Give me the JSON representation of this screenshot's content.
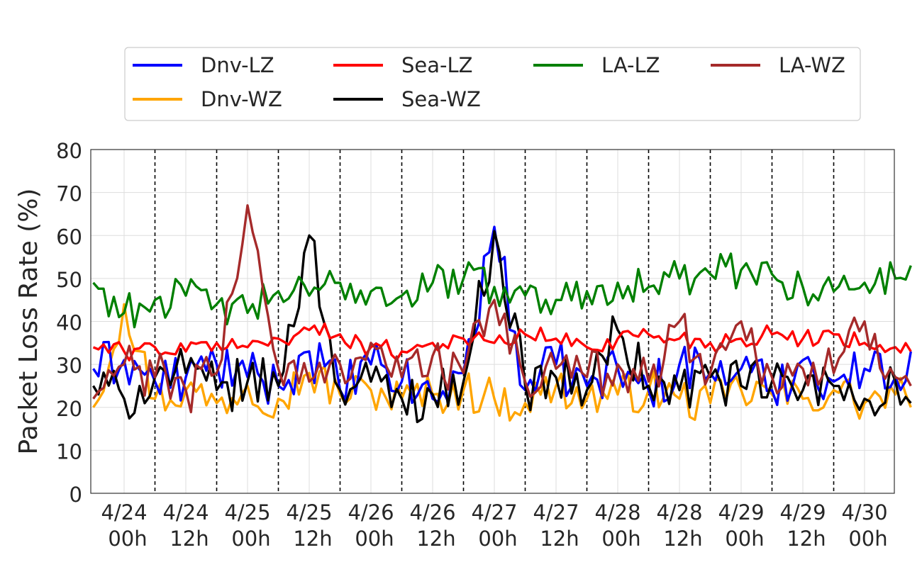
{
  "chart_data": {
    "type": "line",
    "title": "",
    "xlabel": "",
    "ylabel": "Packet Loss Rate (%)",
    "ylim": [
      0,
      80
    ],
    "yticks": [
      "0",
      "10",
      "20",
      "30",
      "40",
      "50",
      "60",
      "70",
      "80"
    ],
    "x_range": [
      "4/23 18h",
      "4/30 09h"
    ],
    "x_ticks": [
      {
        "line1": "4/24",
        "line2": "00h"
      },
      {
        "line1": "4/24",
        "line2": "12h"
      },
      {
        "line1": "4/25",
        "line2": "00h"
      },
      {
        "line1": "4/25",
        "line2": "12h"
      },
      {
        "line1": "4/26",
        "line2": "00h"
      },
      {
        "line1": "4/26",
        "line2": "12h"
      },
      {
        "line1": "4/27",
        "line2": "00h"
      },
      {
        "line1": "4/27",
        "line2": "12h"
      },
      {
        "line1": "4/28",
        "line2": "00h"
      },
      {
        "line1": "4/28",
        "line2": "12h"
      },
      {
        "line1": "4/29",
        "line2": "00h"
      },
      {
        "line1": "4/29",
        "line2": "12h"
      },
      {
        "line1": "4/30",
        "line2": "00h"
      }
    ],
    "day_boundaries": [
      "4/24 06h",
      "4/24 18h",
      "4/25 06h",
      "4/25 18h",
      "4/26 06h",
      "4/26 18h",
      "4/27 06h",
      "4/27 18h",
      "4/28 06h",
      "4/28 18h",
      "4/29 06h",
      "4/29 18h"
    ],
    "grid": true,
    "legend_position": "top-center",
    "x_hours": [
      0,
      6,
      12,
      18,
      24,
      30,
      36,
      42,
      48,
      54,
      60,
      66,
      72,
      78,
      84,
      90,
      96,
      102,
      108,
      114,
      120,
      126,
      132,
      138,
      144,
      150,
      156,
      159
    ],
    "series": [
      {
        "name": "Dnv-LZ",
        "color": "#0000ff",
        "values": [
          29,
          31,
          26,
          27,
          30,
          27,
          25,
          33,
          24,
          30,
          26,
          22,
          28,
          62,
          24,
          30,
          25,
          29,
          24,
          30,
          28,
          29,
          24,
          31,
          26,
          29,
          27,
          33
        ]
      },
      {
        "name": "Sea-LZ",
        "color": "#ff0000",
        "values": [
          34,
          33,
          34,
          33,
          35,
          34,
          36,
          38,
          37,
          34,
          33,
          35,
          36,
          35,
          37,
          36,
          34,
          36,
          37,
          36,
          35,
          36,
          37,
          36,
          37,
          35,
          34,
          33
        ]
      },
      {
        "name": "LA-LZ",
        "color": "#008000",
        "values": [
          49,
          42,
          45,
          46,
          44,
          42,
          47,
          46,
          49,
          47,
          46,
          49,
          50,
          48,
          46,
          45,
          47,
          49,
          48,
          50,
          51,
          52,
          51,
          48,
          47,
          49,
          50,
          53
        ]
      },
      {
        "name": "LA-WZ",
        "color": "#a52a2a",
        "values": [
          22,
          30,
          27,
          24,
          28,
          67,
          29,
          26,
          30,
          35,
          27,
          32,
          28,
          45,
          26,
          29,
          27,
          30,
          26,
          40,
          28,
          40,
          27,
          29,
          28,
          40,
          27,
          25
        ]
      },
      {
        "name": "Dnv-WZ",
        "color": "#ffa500",
        "values": [
          20,
          44,
          22,
          24,
          21,
          25,
          22,
          28,
          23,
          24,
          22,
          23,
          24,
          22,
          21,
          25,
          22,
          23,
          24,
          22,
          21,
          24,
          23,
          22,
          24,
          21,
          23,
          20
        ]
      },
      {
        "name": "Sea-WZ",
        "color": "#000000",
        "values": [
          25,
          22,
          27,
          28,
          24,
          26,
          25,
          60,
          24,
          26,
          22,
          23,
          26,
          61,
          25,
          27,
          24,
          38,
          25,
          24,
          27,
          25,
          26,
          24,
          25,
          22,
          26,
          21
        ]
      }
    ]
  }
}
